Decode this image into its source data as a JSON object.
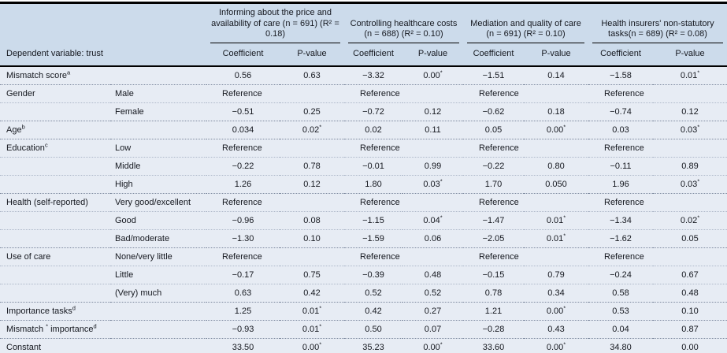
{
  "colors": {
    "header_background": "#ccdbeb",
    "body_background": "#e7ecf4",
    "rule_color": "#000000",
    "text_color": "#15181f"
  },
  "table": {
    "subheader": {
      "dependent_label": "Dependent variable: trust",
      "coef_label": "Coefficient",
      "pval_label": "P-value"
    },
    "groups": [
      {
        "title": "Informing about the price and availability of care (n = 691) (R² = 0.18)"
      },
      {
        "title": "Controlling healthcare costs (n = 688) (R² = 0.10)"
      },
      {
        "title": "Mediation and quality of care (n = 691) (R² = 0.10)"
      },
      {
        "title": "Health insurers' non-statutory tasks(n = 689) (R² = 0.08)"
      }
    ],
    "rows": [
      {
        "label_parts": [
          {
            "t": "Mismatch score"
          },
          {
            "sup": "a"
          }
        ],
        "category": "",
        "group_start": true,
        "values": [
          "0.56",
          "0.63",
          "−3.32",
          "0.00*",
          "−1.51",
          "0.14",
          "−1.58",
          "0.01*"
        ]
      },
      {
        "label_parts": [
          {
            "t": "Gender"
          }
        ],
        "category": "Male",
        "group_start": true,
        "values": [
          "Reference",
          "Reference",
          "Reference",
          "Reference"
        ]
      },
      {
        "label_parts": [],
        "category": "Female",
        "group_start": false,
        "values": [
          "−0.51",
          "0.25",
          "−0.72",
          "0.12",
          "−0.62",
          "0.18",
          "−0.74",
          "0.12"
        ]
      },
      {
        "label_parts": [
          {
            "t": "Age"
          },
          {
            "sup": "b"
          }
        ],
        "category": "",
        "group_start": true,
        "values": [
          "0.034",
          "0.02*",
          "0.02",
          "0.11",
          "0.05",
          "0.00*",
          "0.03",
          "0.03*"
        ]
      },
      {
        "label_parts": [
          {
            "t": "Education"
          },
          {
            "sup": "c"
          }
        ],
        "category": "Low",
        "group_start": true,
        "values": [
          "Reference",
          "Reference",
          "Reference",
          "Reference"
        ]
      },
      {
        "label_parts": [],
        "category": "Middle",
        "group_start": false,
        "values": [
          "−0.22",
          "0.78",
          "−0.01",
          "0.99",
          "−0.22",
          "0.80",
          "−0.11",
          "0.89"
        ]
      },
      {
        "label_parts": [],
        "category": "High",
        "group_start": false,
        "values": [
          "1.26",
          "0.12",
          "1.80",
          "0.03*",
          "1.70",
          "0.050",
          "1.96",
          "0.03*"
        ]
      },
      {
        "label_parts": [
          {
            "t": "Health (self-reported)"
          }
        ],
        "category": "Very good/excellent",
        "group_start": true,
        "values": [
          "Reference",
          "Reference",
          "Reference",
          "Reference"
        ]
      },
      {
        "label_parts": [],
        "category": "Good",
        "group_start": false,
        "values": [
          "−0.96",
          "0.08",
          "−1.15",
          "0.04*",
          "−1.47",
          "0.01*",
          "−1.34",
          "0.02*"
        ]
      },
      {
        "label_parts": [],
        "category": "Bad/moderate",
        "group_start": false,
        "values": [
          "−1.30",
          "0.10",
          "−1.59",
          "0.06",
          "−2.05",
          "0.01*",
          "−1.62",
          "0.05"
        ]
      },
      {
        "label_parts": [
          {
            "t": "Use of care"
          }
        ],
        "category": "None/very little",
        "group_start": true,
        "values": [
          "Reference",
          "Reference",
          "Reference",
          "Reference"
        ]
      },
      {
        "label_parts": [],
        "category": "Little",
        "group_start": false,
        "values": [
          "−0.17",
          "0.75",
          "−0.39",
          "0.48",
          "−0.15",
          "0.79",
          "−0.24",
          "0.67"
        ]
      },
      {
        "label_parts": [],
        "category": "(Very) much",
        "group_start": false,
        "values": [
          "0.63",
          "0.42",
          "0.52",
          "0.52",
          "0.78",
          "0.34",
          "0.58",
          "0.48"
        ]
      },
      {
        "label_parts": [
          {
            "t": "Importance tasks"
          },
          {
            "sup": "d"
          }
        ],
        "category": "",
        "group_start": true,
        "values": [
          "1.25",
          "0.01*",
          "0.42",
          "0.27",
          "1.21",
          "0.00*",
          "0.53",
          "0.10"
        ]
      },
      {
        "label_parts": [
          {
            "t": "Mismatch "
          },
          {
            "sup": "*"
          },
          {
            "t": " importance"
          },
          {
            "sup": "d"
          }
        ],
        "category": "",
        "group_start": true,
        "values": [
          "−0.93",
          "0.01*",
          "0.50",
          "0.07",
          "−0.28",
          "0.43",
          "0.04",
          "0.87"
        ]
      },
      {
        "label_parts": [
          {
            "t": "Constant"
          }
        ],
        "category": "",
        "group_start": true,
        "values": [
          "33.50",
          "0.00*",
          "35.23",
          "0.00*",
          "33.60",
          "0.00*",
          "34.80",
          "0.00"
        ]
      }
    ]
  }
}
